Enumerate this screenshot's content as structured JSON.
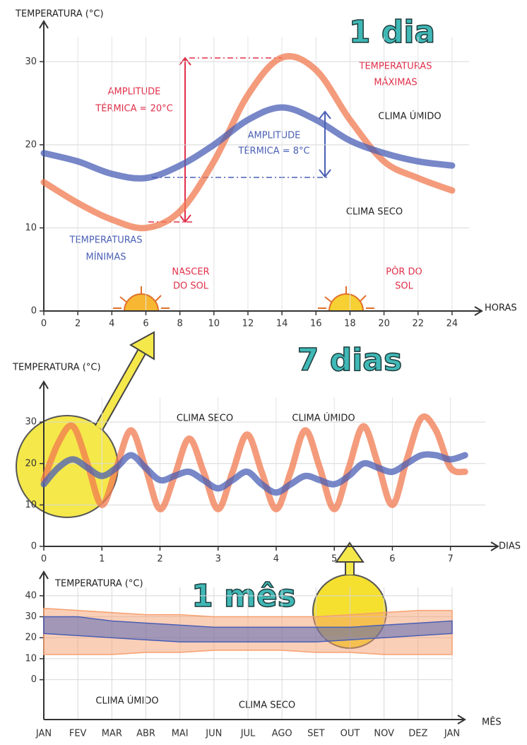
{
  "chart_data": [
    {
      "type": "line",
      "title": "1 dia",
      "ylabel": "TEMPERATURA (°C)",
      "xlabel": "HORAS",
      "x": [
        0,
        2,
        4,
        6,
        8,
        10,
        12,
        14,
        16,
        18,
        20,
        22,
        24
      ],
      "series": [
        {
          "name": "CLIMA SECO",
          "color": "#f07a50",
          "values": [
            15.5,
            13,
            11,
            10,
            12,
            18,
            26,
            30.5,
            29,
            23,
            18,
            16,
            14.5
          ]
        },
        {
          "name": "CLIMA ÚMIDO",
          "color": "#4a5fb5",
          "values": [
            19,
            18,
            16.5,
            16,
            17.5,
            20,
            23,
            24.5,
            23,
            20.5,
            19,
            18,
            17.5
          ]
        }
      ],
      "xlim": [
        0,
        25
      ],
      "xticks": [
        0,
        2,
        4,
        6,
        8,
        10,
        12,
        14,
        16,
        18,
        20,
        22,
        24
      ],
      "ylim": [
        0,
        33
      ],
      "yticks": [
        0,
        10,
        20,
        30
      ],
      "grid": true,
      "annotations": [
        [
          "AMPLITUDE",
          "TÉRMICA = 20°C"
        ],
        [
          "AMPLITUDE",
          "TÉRMICA = 8°C"
        ],
        [
          "TEMPERATURAS",
          "MÁXIMAS"
        ],
        [
          "TEMPERATURAS",
          "MÍNIMAS"
        ],
        [
          "NASCER",
          "DO SOL"
        ],
        [
          "PÔR DO",
          "SOL"
        ]
      ]
    },
    {
      "type": "line",
      "title": "7 dias",
      "ylabel": "TEMPERATURA (°C)",
      "xlabel": "DIAS",
      "x": [
        0,
        0.25,
        0.5,
        0.75,
        1,
        1.25,
        1.5,
        1.75,
        2,
        2.25,
        2.5,
        2.75,
        3,
        3.25,
        3.5,
        3.75,
        4,
        4.25,
        4.5,
        4.75,
        5,
        5.25,
        5.5,
        5.75,
        6,
        6.25,
        6.5,
        6.75,
        7,
        7.25
      ],
      "series": [
        {
          "name": "CLIMA SECO",
          "color": "#f07a50",
          "values": [
            16,
            25,
            29,
            20,
            10,
            19,
            28,
            19,
            9,
            17,
            26,
            18,
            9,
            18,
            27,
            18,
            9,
            18,
            28,
            19,
            9,
            19,
            29,
            20,
            10,
            21,
            31,
            28,
            19,
            18
          ]
        },
        {
          "name": "CLIMA ÚMIDO",
          "color": "#4a5fb5",
          "values": [
            15,
            19,
            21,
            19,
            17,
            19,
            22,
            19,
            16,
            17,
            18,
            16,
            14,
            16,
            18,
            15,
            13,
            15,
            17,
            16,
            15,
            17,
            20,
            19,
            18,
            20,
            22,
            22,
            21,
            22
          ]
        }
      ],
      "xlim": [
        0,
        7.6
      ],
      "xticks": [
        0,
        1,
        2,
        3,
        4,
        5,
        6,
        7
      ],
      "ylim": [
        0,
        36
      ],
      "yticks": [
        0,
        10,
        20,
        30
      ],
      "grid": true
    },
    {
      "type": "range",
      "title": "1 mês",
      "ylabel": "TEMPERATURA (°C)",
      "xlabel": "MÊS",
      "categories": [
        "JAN",
        "FEV",
        "MAR",
        "ABR",
        "MAI",
        "JUN",
        "JUL",
        "AGO",
        "SET",
        "OUT",
        "NOV",
        "DEZ",
        "JAN"
      ],
      "series": [
        {
          "name": "CLIMA SECO",
          "color": "#f5a070",
          "high": [
            34,
            33,
            32,
            31,
            31,
            30,
            30,
            30,
            30,
            31,
            32,
            33,
            33
          ],
          "low": [
            12,
            12,
            12,
            13,
            13,
            14,
            14,
            14,
            13,
            13,
            12,
            12,
            12
          ]
        },
        {
          "name": "CLIMA ÚMIDO",
          "color": "#4a5fb5",
          "high": [
            30,
            30,
            28,
            27,
            26,
            25,
            25,
            25,
            25,
            25,
            26,
            27,
            28
          ],
          "low": [
            22,
            21,
            20,
            19,
            18,
            18,
            18,
            18,
            18,
            19,
            20,
            21,
            22
          ]
        }
      ],
      "ylim": [
        -19,
        44
      ],
      "yticks": [
        0,
        10,
        20,
        30,
        40
      ],
      "grid": true
    }
  ]
}
